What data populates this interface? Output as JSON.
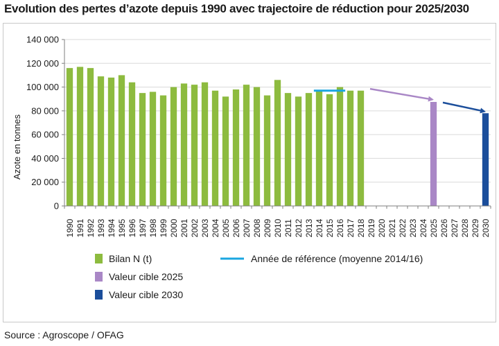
{
  "title": "Evolution des pertes d’azote depuis 1990 avec trajectoire de réduction pour 2025/2030",
  "source": "Source : Agroscope / OFAG",
  "colors": {
    "bilan": "#8dbb3f",
    "reference": "#1aa6e0",
    "cible2025": "#a987c6",
    "cible2030": "#1b4e9b",
    "grid": "#d9d9d9",
    "axis": "#7f7f7f"
  },
  "chart_data": {
    "type": "bar",
    "title": "Evolution des pertes d’azote depuis 1990 avec trajectoire de réduction pour 2025/2030",
    "xlabel": "",
    "ylabel": "Azote en tonnes",
    "ylim": [
      0,
      140000
    ],
    "yticks": [
      0,
      20000,
      40000,
      60000,
      80000,
      100000,
      120000,
      140000
    ],
    "ytick_labels": [
      "0",
      "20 000",
      "40 000",
      "60 000",
      "80 000",
      "100 000",
      "120 000",
      "140 000"
    ],
    "categories": [
      "1990",
      "1991",
      "1992",
      "1993",
      "1994",
      "1995",
      "1996",
      "1997",
      "1998",
      "1999",
      "2000",
      "2001",
      "2002",
      "2003",
      "2004",
      "2005",
      "2006",
      "2007",
      "2008",
      "2009",
      "2010",
      "2011",
      "2012",
      "2013",
      "2014",
      "2015",
      "2016",
      "2017",
      "2018",
      "2019",
      "2020",
      "2021",
      "2022",
      "2023",
      "2024",
      "2025",
      "2026",
      "2027",
      "2028",
      "2029",
      "2030"
    ],
    "series": [
      {
        "name": "Bilan N (t)",
        "color": "#8dbb3f",
        "values": [
          116000,
          117000,
          116000,
          109000,
          108000,
          110000,
          104000,
          95000,
          96000,
          93000,
          100000,
          103000,
          102000,
          104000,
          97000,
          92000,
          98000,
          102000,
          100000,
          93000,
          106000,
          95000,
          92000,
          95000,
          97000,
          94000,
          100000,
          97000,
          97000,
          null,
          null,
          null,
          null,
          null,
          null,
          null,
          null,
          null,
          null,
          null,
          null
        ]
      },
      {
        "name": "Valeur cible 2025",
        "color": "#a987c6",
        "values": [
          null,
          null,
          null,
          null,
          null,
          null,
          null,
          null,
          null,
          null,
          null,
          null,
          null,
          null,
          null,
          null,
          null,
          null,
          null,
          null,
          null,
          null,
          null,
          null,
          null,
          null,
          null,
          null,
          null,
          null,
          null,
          null,
          null,
          null,
          null,
          87500,
          null,
          null,
          null,
          null,
          null
        ]
      },
      {
        "name": "Valeur cible 2030",
        "color": "#1b4e9b",
        "values": [
          null,
          null,
          null,
          null,
          null,
          null,
          null,
          null,
          null,
          null,
          null,
          null,
          null,
          null,
          null,
          null,
          null,
          null,
          null,
          null,
          null,
          null,
          null,
          null,
          null,
          null,
          null,
          null,
          null,
          null,
          null,
          null,
          null,
          null,
          null,
          null,
          null,
          null,
          null,
          null,
          78000
        ]
      }
    ],
    "reference_line": {
      "name": "Année de référence (moyenne 2014/16)",
      "color": "#1aa6e0",
      "value": 97000,
      "from": "2014",
      "to": "2016"
    },
    "arrows": [
      {
        "from_year": "2019",
        "from_value": 98500,
        "to_year": "2025",
        "to_value": 89500,
        "color": "#a987c6"
      },
      {
        "from_year": "2026",
        "from_value": 87000,
        "to_year": "2030",
        "to_value": 79500,
        "color": "#1b4e9b"
      }
    ],
    "legend": [
      {
        "label": "Bilan N (t)",
        "marker": "square",
        "color": "#8dbb3f"
      },
      {
        "label": "Année de référence (moyenne 2014/16)",
        "marker": "line",
        "color": "#1aa6e0"
      },
      {
        "label": "Valeur cible 2025",
        "marker": "square",
        "color": "#a987c6"
      },
      {
        "label": "Valeur cible 2030",
        "marker": "square",
        "color": "#1b4e9b"
      }
    ],
    "legend_position": "bottom",
    "grid": true
  }
}
